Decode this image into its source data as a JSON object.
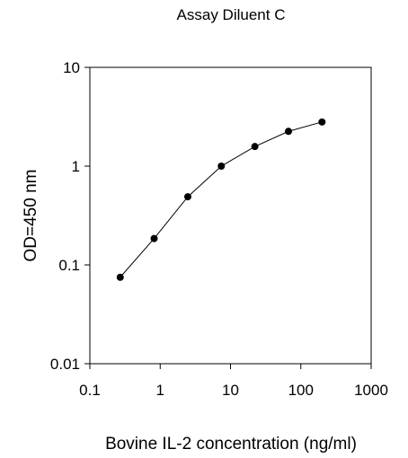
{
  "chart_data": {
    "type": "line",
    "title": "Assay Diluent C",
    "xlabel": "Bovine IL-2 concentration (ng/ml)",
    "ylabel": "OD=450 nm",
    "xscale": "log",
    "yscale": "log",
    "xlim": [
      0.1,
      1000
    ],
    "ylim": [
      0.01,
      10
    ],
    "xticks": [
      0.1,
      1,
      10,
      100,
      1000
    ],
    "xtick_labels": [
      "0.1",
      "1",
      "10",
      "100",
      "1000"
    ],
    "yticks": [
      0.01,
      0.1,
      1,
      10
    ],
    "ytick_labels": [
      "0.01",
      "0.1",
      "1",
      "10"
    ],
    "grid": false,
    "legend": "none",
    "series": [
      {
        "x": [
          0.27,
          0.82,
          2.47,
          7.4,
          22.2,
          66.7,
          200
        ],
        "y": [
          0.075,
          0.185,
          0.49,
          1.0,
          1.58,
          2.25,
          2.8
        ],
        "color": "#000000",
        "marker": "circle"
      }
    ]
  }
}
